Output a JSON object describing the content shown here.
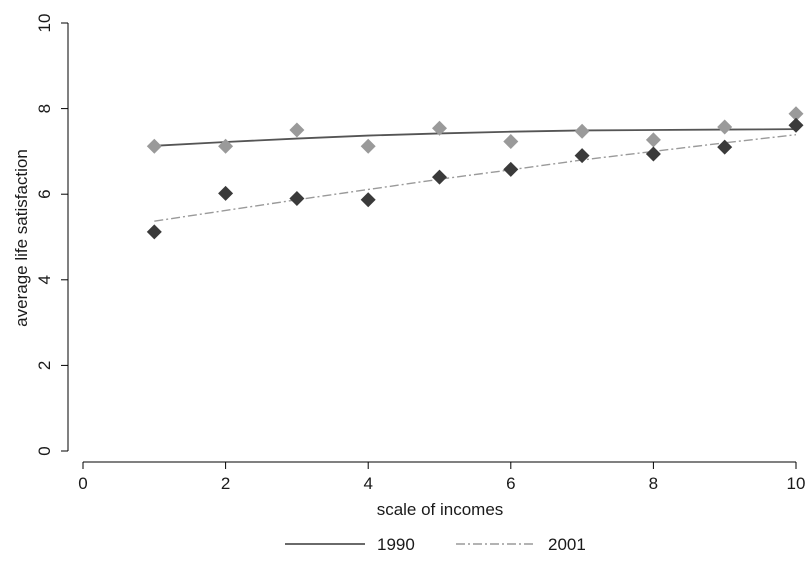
{
  "chart_data": {
    "type": "scatter",
    "xlabel": "scale of incomes",
    "ylabel": "average life satisfaction",
    "xlim": [
      0,
      10
    ],
    "ylim": [
      0,
      10
    ],
    "xticks": [
      0,
      2,
      4,
      6,
      8,
      10
    ],
    "yticks": [
      0,
      2,
      4,
      6,
      8,
      10
    ],
    "grid": false,
    "legend_position": "bottom",
    "x": [
      1,
      2,
      3,
      4,
      5,
      6,
      7,
      8,
      9,
      10
    ],
    "series": [
      {
        "name": "1990",
        "marker_color": "#9a9a9a",
        "line_color": "#555555",
        "line_style": "solid",
        "points": [
          7.12,
          7.12,
          7.5,
          7.12,
          7.54,
          7.23,
          7.47,
          7.27,
          7.57,
          7.88
        ],
        "fit": [
          7.13,
          7.22,
          7.3,
          7.37,
          7.42,
          7.46,
          7.49,
          7.5,
          7.51,
          7.52
        ]
      },
      {
        "name": "2001",
        "marker_color": "#3a3a3a",
        "line_color": "#9a9a9a",
        "line_style": "dash-dot",
        "points": [
          5.12,
          6.02,
          5.9,
          5.87,
          6.4,
          6.58,
          6.9,
          6.94,
          7.1,
          7.61
        ],
        "fit": [
          5.37,
          5.62,
          5.87,
          6.11,
          6.35,
          6.57,
          6.8,
          7.0,
          7.2,
          7.39
        ]
      }
    ]
  }
}
